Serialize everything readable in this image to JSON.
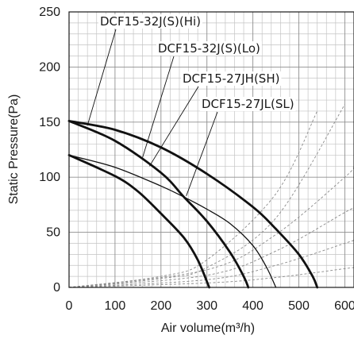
{
  "chart_data": {
    "type": "line",
    "xlabel": "Air volume(m³/h)",
    "ylabel": "Static Pressure(Pa)",
    "xlim": [
      0,
      620
    ],
    "ylim": [
      0,
      250
    ],
    "x_ticks": [
      0,
      100,
      200,
      300,
      400,
      500,
      600
    ],
    "y_ticks": [
      0,
      50,
      100,
      150,
      200,
      250
    ],
    "grid": true,
    "series": [
      {
        "name": "DCF15-32J(S)(Hi)",
        "style": "bold",
        "points": [
          [
            0,
            151
          ],
          [
            100,
            143
          ],
          [
            200,
            127
          ],
          [
            300,
            103
          ],
          [
            400,
            73
          ],
          [
            450,
            53
          ],
          [
            500,
            30
          ],
          [
            530,
            10
          ],
          [
            540,
            0
          ]
        ]
      },
      {
        "name": "DCF15-32J(S)(Lo)",
        "style": "bold",
        "points": [
          [
            0,
            151
          ],
          [
            100,
            133
          ],
          [
            200,
            104
          ],
          [
            250,
            82
          ],
          [
            300,
            60
          ],
          [
            350,
            32
          ],
          [
            380,
            10
          ],
          [
            390,
            0
          ]
        ]
      },
      {
        "name": "DCF15-27JH(SH)",
        "style": "thin",
        "points": [
          [
            0,
            120
          ],
          [
            100,
            109
          ],
          [
            200,
            92
          ],
          [
            250,
            82
          ],
          [
            300,
            71
          ],
          [
            350,
            58
          ],
          [
            400,
            38
          ],
          [
            430,
            18
          ],
          [
            450,
            0
          ]
        ]
      },
      {
        "name": "DCF15-27JL(SL)",
        "style": "bold",
        "points": [
          [
            0,
            120
          ],
          [
            100,
            101
          ],
          [
            150,
            87
          ],
          [
            200,
            67
          ],
          [
            250,
            45
          ],
          [
            280,
            25
          ],
          [
            305,
            0
          ]
        ]
      }
    ],
    "system_curves": [
      {
        "points": [
          [
            0,
            0
          ],
          [
            200,
            10
          ],
          [
            300,
            25
          ],
          [
            450,
            85
          ],
          [
            540,
            160
          ]
        ]
      },
      {
        "points": [
          [
            0,
            0
          ],
          [
            200,
            8
          ],
          [
            300,
            18
          ],
          [
            450,
            63
          ],
          [
            600,
            166
          ]
        ]
      },
      {
        "points": [
          [
            0,
            0
          ],
          [
            300,
            16
          ],
          [
            450,
            48
          ],
          [
            600,
            100
          ],
          [
            620,
            110
          ]
        ]
      },
      {
        "points": [
          [
            0,
            0
          ],
          [
            300,
            11
          ],
          [
            450,
            33
          ],
          [
            600,
            68
          ],
          [
            620,
            72
          ]
        ]
      },
      {
        "points": [
          [
            0,
            0
          ],
          [
            300,
            7
          ],
          [
            450,
            20
          ],
          [
            600,
            40
          ],
          [
            620,
            43
          ]
        ]
      },
      {
        "points": [
          [
            0,
            0
          ],
          [
            300,
            4
          ],
          [
            450,
            9
          ],
          [
            600,
            17
          ],
          [
            620,
            18
          ]
        ]
      }
    ],
    "annotations": [
      {
        "text": "DCF15-32J(S)(Hi)",
        "point": [
          40,
          147
        ]
      },
      {
        "text": "DCF15-32J(S)(Lo)",
        "point": [
          160,
          118
        ]
      },
      {
        "text": "DCF15-27JH(SH)",
        "point": [
          175,
          110
        ]
      },
      {
        "text": "DCF15-27JL(SL)",
        "point": [
          255,
          83
        ]
      }
    ]
  }
}
